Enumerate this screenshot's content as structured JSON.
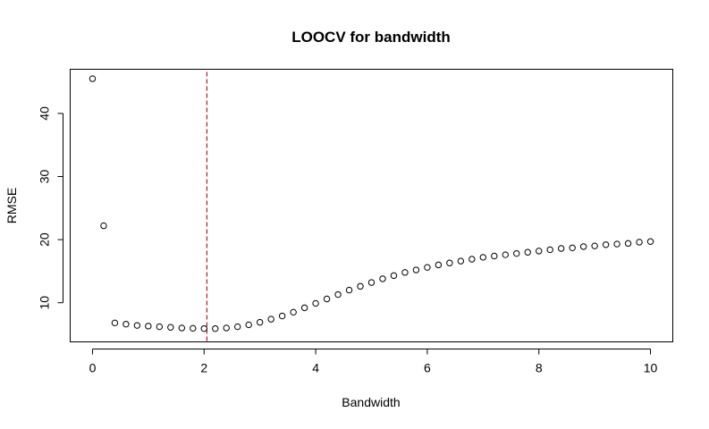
{
  "chart_data": {
    "type": "scatter",
    "title": "LOOCV for bandwidth",
    "xlabel": "Bandwidth",
    "ylabel": "RMSE",
    "xlim": [
      -0.4,
      10.4
    ],
    "ylim": [
      3.8,
      47.0
    ],
    "x_ticks": [
      0,
      2,
      4,
      6,
      8,
      10
    ],
    "y_ticks": [
      10,
      20,
      30,
      40
    ],
    "grid": false,
    "legend": "none",
    "reference_line": {
      "orientation": "vertical",
      "x": 2.05,
      "color": "#b2182b",
      "style": "dashed"
    },
    "points": [
      [
        0.0,
        45.5
      ],
      [
        0.2,
        22.2
      ],
      [
        0.4,
        6.8
      ],
      [
        0.6,
        6.6
      ],
      [
        0.8,
        6.4
      ],
      [
        1.0,
        6.3
      ],
      [
        1.2,
        6.2
      ],
      [
        1.4,
        6.1
      ],
      [
        1.6,
        6.0
      ],
      [
        1.8,
        5.95
      ],
      [
        2.0,
        5.9
      ],
      [
        2.2,
        5.9
      ],
      [
        2.4,
        6.0
      ],
      [
        2.6,
        6.2
      ],
      [
        2.8,
        6.5
      ],
      [
        3.0,
        6.9
      ],
      [
        3.2,
        7.4
      ],
      [
        3.4,
        7.9
      ],
      [
        3.6,
        8.5
      ],
      [
        3.8,
        9.2
      ],
      [
        4.0,
        9.9
      ],
      [
        4.2,
        10.6
      ],
      [
        4.4,
        11.3
      ],
      [
        4.6,
        12.0
      ],
      [
        4.8,
        12.6
      ],
      [
        5.0,
        13.2
      ],
      [
        5.2,
        13.8
      ],
      [
        5.4,
        14.3
      ],
      [
        5.6,
        14.8
      ],
      [
        5.8,
        15.2
      ],
      [
        6.0,
        15.6
      ],
      [
        6.2,
        16.0
      ],
      [
        6.4,
        16.3
      ],
      [
        6.6,
        16.6
      ],
      [
        6.8,
        16.9
      ],
      [
        7.0,
        17.2
      ],
      [
        7.2,
        17.4
      ],
      [
        7.4,
        17.6
      ],
      [
        7.6,
        17.8
      ],
      [
        7.8,
        18.0
      ],
      [
        8.0,
        18.2
      ],
      [
        8.2,
        18.4
      ],
      [
        8.4,
        18.6
      ],
      [
        8.6,
        18.7
      ],
      [
        8.8,
        18.9
      ],
      [
        9.0,
        19.0
      ],
      [
        9.2,
        19.2
      ],
      [
        9.4,
        19.3
      ],
      [
        9.6,
        19.4
      ],
      [
        9.8,
        19.6
      ],
      [
        10.0,
        19.7
      ]
    ]
  }
}
